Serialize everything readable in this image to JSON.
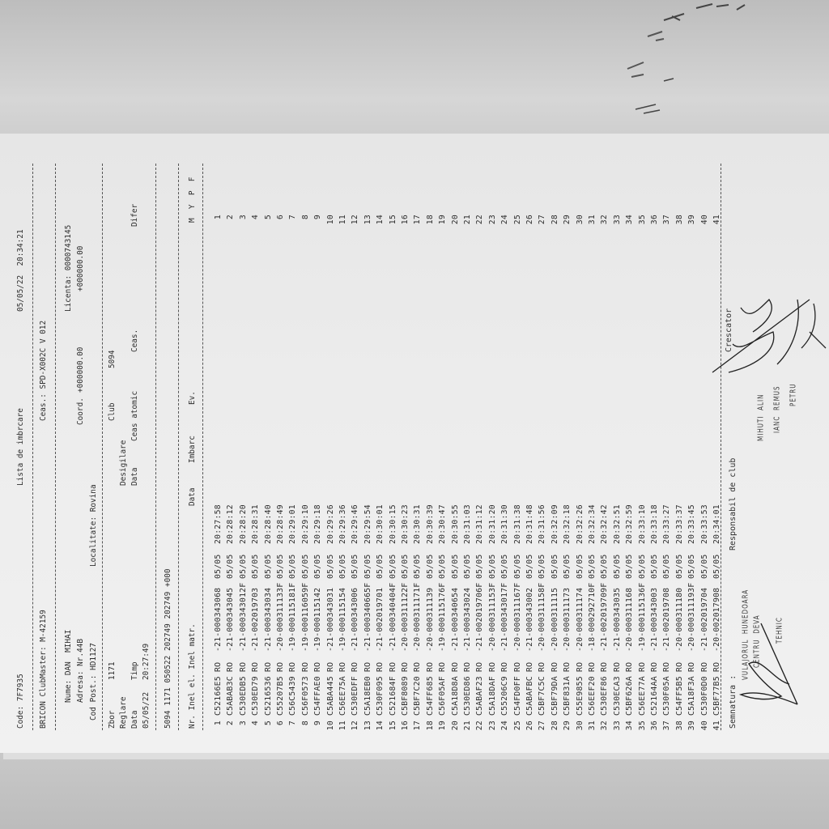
{
  "header": {
    "code": "Code: 7F7935",
    "title": "Lista de imbrcare",
    "datetime": "05/05/22  20:34:21",
    "device": "BRICON ClubMaster: M-42159",
    "clock": "Ceas.: SPD-X002C V 012"
  },
  "owner": {
    "name": "Nume: DAN  MIHAI",
    "license": "Licenta: 0000743145",
    "address": "Adresa: Nr.44B",
    "coord_label": "Coord.",
    "coord_1": "+000000.00",
    "coord_2": "+000000.00",
    "postal": "Cod Post.: HD1127",
    "locality": "Localitate: Rovina"
  },
  "flight": {
    "zbor_label": "Zbor",
    "zbor": "1171",
    "club_label": "Club",
    "club": "5094",
    "reglare": "Reglare",
    "desigilare": "Desigilare",
    "data_label": "Data",
    "timp_label": "Timp",
    "data2_label": "Data",
    "ceas_atomic_label": "Ceas atomic",
    "ceas_label": "Ceas.",
    "difer_label": "Difer",
    "date": "05/05/22",
    "time": "20:27:49",
    "summary": "5094 1171 050522 202749 202749 +000"
  },
  "table": {
    "headers": {
      "left": "Nr. Inel el. Inel matr.",
      "data": "Data",
      "imbarc": "Imbarc",
      "ev": "Ev.",
      "mypf": "M  Y  P  F"
    },
    "rows": [
      {
        "nr": "1",
        "el": "C52166E5",
        "c": "RO",
        "matr": "-21-000343068",
        "date": "05/05",
        "time": "20:27:58",
        "m": "1"
      },
      {
        "nr": "2",
        "el": "C5ABAB3C",
        "c": "RO",
        "matr": "-21-000343045",
        "date": "05/05",
        "time": "20:28:12",
        "m": "2"
      },
      {
        "nr": "3",
        "el": "C530EDB5",
        "c": "RO",
        "matr": "-21-000343012F",
        "date": "05/05",
        "time": "20:28:20",
        "m": "3"
      },
      {
        "nr": "4",
        "el": "C530ED79",
        "c": "RO",
        "matr": "-21-002019703",
        "date": "05/05",
        "time": "20:28:31",
        "m": "4"
      },
      {
        "nr": "5",
        "el": "C5216536",
        "c": "RO",
        "matr": "-21-000343034",
        "date": "05/05",
        "time": "20:28:40",
        "m": "5"
      },
      {
        "nr": "6",
        "el": "C55207B5",
        "c": "RO",
        "matr": "-20-000311133F",
        "date": "05/05",
        "time": "20:28:49",
        "m": "6"
      },
      {
        "nr": "7",
        "el": "C56C5439",
        "c": "RO",
        "matr": "-19-000115181F",
        "date": "05/05",
        "time": "20:29:01",
        "m": "7"
      },
      {
        "nr": "8",
        "el": "C56F0573",
        "c": "RO",
        "matr": "-19-000116059F",
        "date": "05/05",
        "time": "20:29:10",
        "m": "8"
      },
      {
        "nr": "9",
        "el": "C54FFAE0",
        "c": "RO",
        "matr": "-19-000115142",
        "date": "05/05",
        "time": "20:29:18",
        "m": "9"
      },
      {
        "nr": "10",
        "el": "C5ABA445",
        "c": "RO",
        "matr": "-21-000343031",
        "date": "05/05",
        "time": "20:29:26",
        "m": "10"
      },
      {
        "nr": "11",
        "el": "C56EE75A",
        "c": "RO",
        "matr": "-19-000115154",
        "date": "05/05",
        "time": "20:29:36",
        "m": "11"
      },
      {
        "nr": "12",
        "el": "C530EDFF",
        "c": "RO",
        "matr": "-21-000343006",
        "date": "05/05",
        "time": "20:29:46",
        "m": "12"
      },
      {
        "nr": "13",
        "el": "C5A18EB0",
        "c": "RO",
        "matr": "-21-000340665F",
        "date": "05/05",
        "time": "20:29:54",
        "m": "13"
      },
      {
        "nr": "14",
        "el": "C530F095",
        "c": "RO",
        "matr": "-21-002019701",
        "date": "05/05",
        "time": "20:30:01",
        "m": "14"
      },
      {
        "nr": "15",
        "el": "C521684F",
        "c": "RO",
        "matr": "-21-000340404F",
        "date": "05/05",
        "time": "20:30:15",
        "m": "15"
      },
      {
        "nr": "16",
        "el": "C5BF8089",
        "c": "RO",
        "matr": "-20-000311122F",
        "date": "05/05",
        "time": "20:30:23",
        "m": "16"
      },
      {
        "nr": "17",
        "el": "C5BF7C20",
        "c": "RO",
        "matr": "-20-000311171F",
        "date": "05/05",
        "time": "20:30:31",
        "m": "17"
      },
      {
        "nr": "18",
        "el": "C54FF685",
        "c": "RO",
        "matr": "-20-000311139",
        "date": "05/05",
        "time": "20:30:39",
        "m": "18"
      },
      {
        "nr": "19",
        "el": "C56F05AF",
        "c": "RO",
        "matr": "-19-000115176F",
        "date": "05/05",
        "time": "20:30:47",
        "m": "19"
      },
      {
        "nr": "20",
        "el": "C5A18D8A",
        "c": "RO",
        "matr": "-21-000340654",
        "date": "05/05",
        "time": "20:30:55",
        "m": "20"
      },
      {
        "nr": "21",
        "el": "C530ED86",
        "c": "RO",
        "matr": "-21-000343024",
        "date": "05/05",
        "time": "20:31:03",
        "m": "21"
      },
      {
        "nr": "22",
        "el": "C5ABAF23",
        "c": "RO",
        "matr": "-21-002019706F",
        "date": "05/05",
        "time": "20:31:12",
        "m": "22"
      },
      {
        "nr": "23",
        "el": "C5A18DAF",
        "c": "RO",
        "matr": "-20-000311153F",
        "date": "05/05",
        "time": "20:31:20",
        "m": "23"
      },
      {
        "nr": "24",
        "el": "C55206C9",
        "c": "RO",
        "matr": "-21-000343017F",
        "date": "05/05",
        "time": "20:31:30",
        "m": "24"
      },
      {
        "nr": "25",
        "el": "C54FD0FF",
        "c": "RO",
        "matr": "-20-000311167F",
        "date": "05/05",
        "time": "20:31:38",
        "m": "25"
      },
      {
        "nr": "26",
        "el": "C5ABAFBC",
        "c": "RO",
        "matr": "-21-000343002",
        "date": "05/05",
        "time": "20:31:48",
        "m": "26"
      },
      {
        "nr": "27",
        "el": "C5BF7C5C",
        "c": "RO",
        "matr": "-20-000311158F",
        "date": "05/05",
        "time": "20:31:56",
        "m": "27"
      },
      {
        "nr": "28",
        "el": "C5BF79DA",
        "c": "RO",
        "matr": "-20-000311115",
        "date": "05/05",
        "time": "20:32:09",
        "m": "28"
      },
      {
        "nr": "29",
        "el": "C5BF831A",
        "c": "RO",
        "matr": "-20-000311173",
        "date": "05/05",
        "time": "20:32:18",
        "m": "29"
      },
      {
        "nr": "30",
        "el": "C55E9855",
        "c": "RO",
        "matr": "-20-000311174",
        "date": "05/05",
        "time": "20:32:26",
        "m": "30"
      },
      {
        "nr": "31",
        "el": "C56EEF20",
        "c": "RO",
        "matr": "-18-000292710F",
        "date": "05/05",
        "time": "20:32:34",
        "m": "31"
      },
      {
        "nr": "32",
        "el": "C530EF86",
        "c": "RO",
        "matr": "-21-002019709F",
        "date": "05/05",
        "time": "20:32:42",
        "m": "32"
      },
      {
        "nr": "33",
        "el": "C530ECA3",
        "c": "RO",
        "matr": "-21-000343035",
        "date": "05/05",
        "time": "20:32:51",
        "m": "33"
      },
      {
        "nr": "34",
        "el": "C5BF626A",
        "c": "RO",
        "matr": "-20-000311168",
        "date": "05/05",
        "time": "20:32:59",
        "m": "34"
      },
      {
        "nr": "35",
        "el": "C56EE77A",
        "c": "RO",
        "matr": "-19-000115136F",
        "date": "05/05",
        "time": "20:33:10",
        "m": "35"
      },
      {
        "nr": "36",
        "el": "C52164AA",
        "c": "RO",
        "matr": "-21-000343003",
        "date": "05/05",
        "time": "20:33:18",
        "m": "36"
      },
      {
        "nr": "37",
        "el": "C530F05A",
        "c": "RO",
        "matr": "-21-002019708",
        "date": "05/05",
        "time": "20:33:27",
        "m": "37"
      },
      {
        "nr": "38",
        "el": "C54FF5B5",
        "c": "RO",
        "matr": "-20-000311180",
        "date": "05/05",
        "time": "20:33:37",
        "m": "38"
      },
      {
        "nr": "39",
        "el": "C5A18F3A",
        "c": "RO",
        "matr": "-20-000311193F",
        "date": "05/05",
        "time": "20:33:45",
        "m": "39"
      },
      {
        "nr": "40",
        "el": "C530F0D0",
        "c": "RO",
        "matr": "-21-002019704",
        "date": "05/05",
        "time": "20:33:53",
        "m": "40"
      },
      {
        "nr": "41",
        "el": "C5BF77B5",
        "c": "RO",
        "matr": "-20-002017908",
        "date": "05/05",
        "time": "20:34:01",
        "m": "41"
      }
    ]
  },
  "footer": {
    "signature_label": "Semnatura :",
    "club_responsible": "Responsabil de club",
    "breeder": "Crescator"
  },
  "stamps": {
    "club_line1": "VULAJORUL  HUNEDOARA",
    "club_line2": "CENTRU  DEVA",
    "club_line3": "TEHNIC",
    "name1": "MIHUTI  ALIN",
    "name2": "IANC  REMUS",
    "name3": "PETRU"
  },
  "colors": {
    "paper": "#efefef",
    "ink": "#2e2e2e",
    "background": "#c9c9c9"
  }
}
